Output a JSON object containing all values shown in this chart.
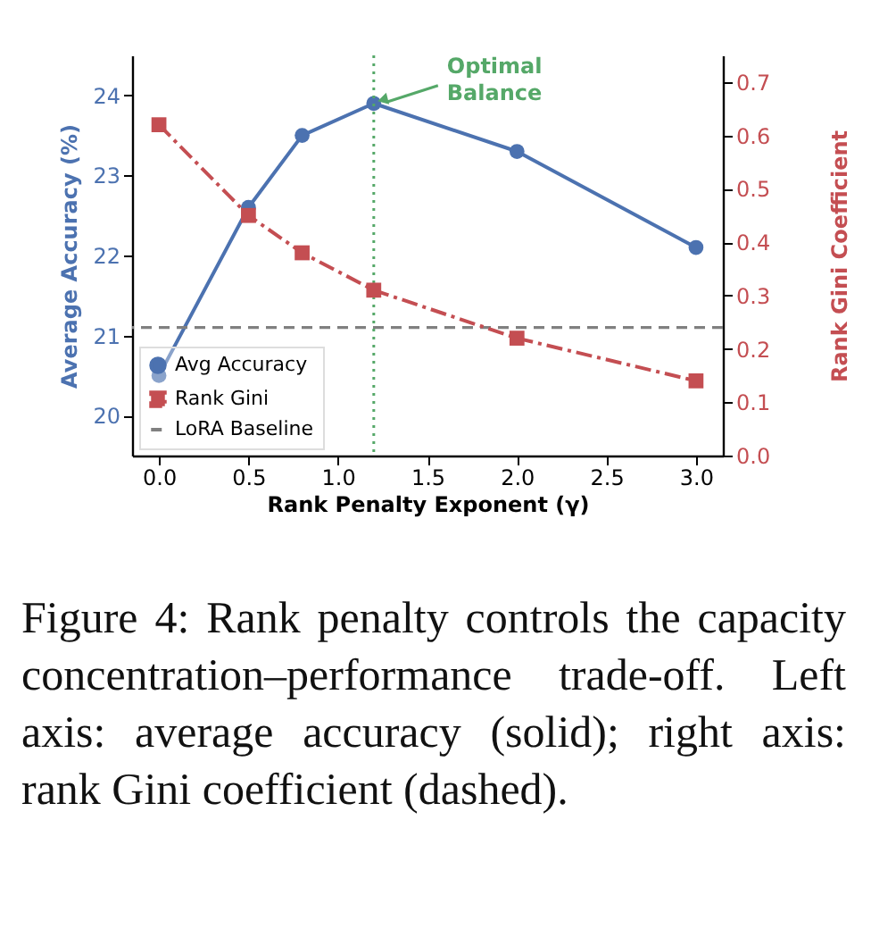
{
  "chart_data": {
    "type": "line",
    "xlabel": "Rank Penalty Exponent (γ)",
    "ylabel": "Average Accuracy (%)",
    "y2label": "Rank Gini Coefficient",
    "x": [
      0,
      0.5,
      0.8,
      1.2,
      2.0,
      3.0
    ],
    "series": [
      {
        "name": "Avg Accuracy",
        "color": "#4c72b0",
        "marker": "circle",
        "line_style": "solid",
        "values": [
          20.5,
          22.6,
          23.5,
          23.9,
          23.3,
          22.1
        ]
      },
      {
        "name": "Rank Gini",
        "color": "#c44e52",
        "marker": "square",
        "line_style": "dashdot",
        "axis": "y2",
        "values": [
          0.62,
          0.45,
          0.38,
          0.31,
          0.22,
          0.14
        ]
      }
    ],
    "xlim": [
      -0.15,
      3.15
    ],
    "xticks": [
      {
        "value": 0,
        "label": "0.0"
      },
      {
        "value": 0.5,
        "label": "0.5"
      },
      {
        "value": 1,
        "label": "1.0"
      },
      {
        "value": 1.5,
        "label": "1.5"
      },
      {
        "value": 2,
        "label": "2.0"
      },
      {
        "value": 2.5,
        "label": "2.5"
      },
      {
        "value": 3,
        "label": "3.0"
      }
    ],
    "ylim": [
      19.5,
      24.5
    ],
    "yticks": [
      20,
      21,
      22,
      23,
      24
    ],
    "y2lim": [
      0,
      0.75
    ],
    "y2ticks": [
      {
        "value": 0,
        "label": "0.0"
      },
      {
        "value": 0.1,
        "label": "0.1"
      },
      {
        "value": 0.2,
        "label": "0.2"
      },
      {
        "value": 0.3,
        "label": "0.3"
      },
      {
        "value": 0.4,
        "label": "0.4"
      },
      {
        "value": 0.5,
        "label": "0.5"
      },
      {
        "value": 0.6,
        "label": "0.6"
      },
      {
        "value": 0.7,
        "label": "0.7"
      }
    ],
    "ref_lines": [
      {
        "axis": "y",
        "value": 21.1,
        "label": "LoRA Baseline",
        "color": "#808080",
        "line_style": "dashed"
      },
      {
        "axis": "x",
        "value": 1.2,
        "color": "#55a868",
        "line_style": "dotted"
      }
    ],
    "annotations": [
      {
        "text": "Optimal\nBalance",
        "x": 1.2,
        "y": 23.9
      },
      "Figure 4: Rank penalty controls the capacity concentration–performance trade-off. Left axis: average accuracy (solid); right axis: rank Gini coefficient (dashed)."
    ],
    "legend": "bottom left",
    "grid": false
  }
}
